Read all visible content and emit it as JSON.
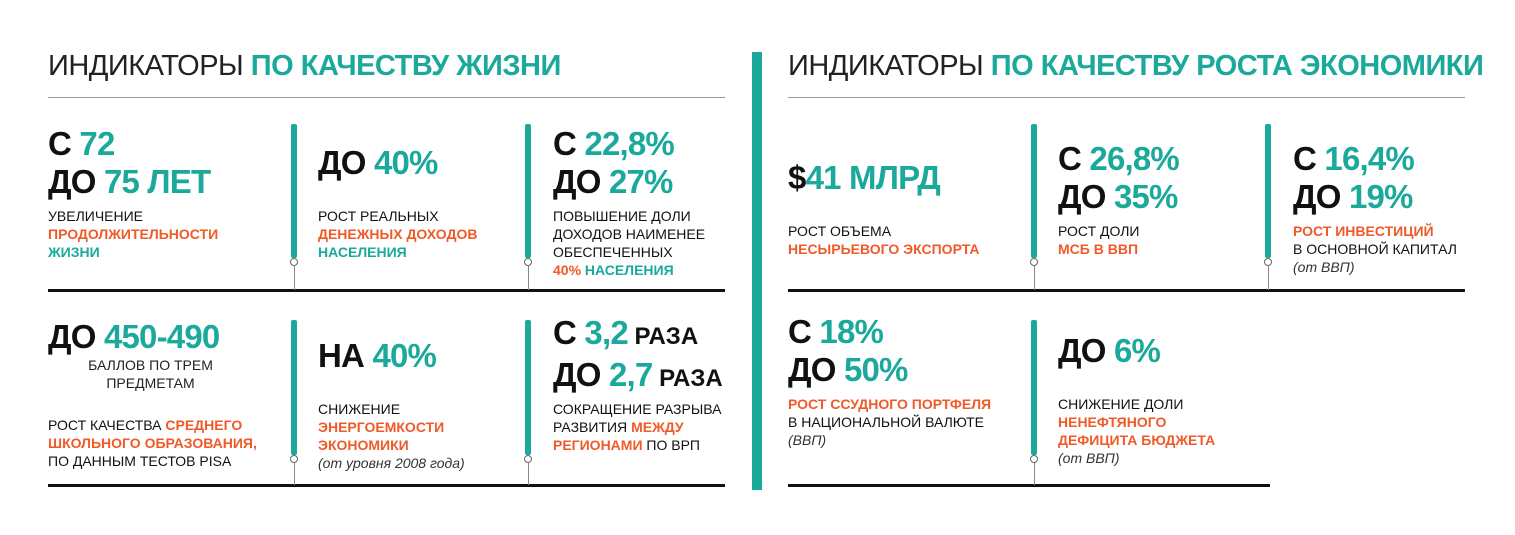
{
  "colors": {
    "teal": "#1ba99b",
    "orange": "#f05a28",
    "black": "#111111"
  },
  "left": {
    "title_light": "ИНДИКАТОРЫ ",
    "title_bold": "ПО КАЧЕСТВУ ЖИЗНИ",
    "indicators": [
      {
        "headline": [
          [
            {
              "t": "С ",
              "c": "k"
            },
            {
              "t": "72",
              "c": "g"
            }
          ],
          [
            {
              "t": "ДО ",
              "c": "k"
            },
            {
              "t": "75 ЛЕТ",
              "c": "g"
            }
          ]
        ],
        "desc": [
          [
            {
              "t": "УВЕЛИЧЕНИЕ",
              "c": "k"
            }
          ],
          [
            {
              "t": "ПРОДОЛЖИТЕЛЬНОСТИ",
              "c": "o",
              "b": 1
            }
          ],
          [
            {
              "t": "ЖИЗНИ",
              "c": "g",
              "b": 1
            }
          ]
        ]
      },
      {
        "headline": [
          [
            {
              "t": "ДО ",
              "c": "k"
            },
            {
              "t": "40%",
              "c": "g"
            }
          ]
        ],
        "desc": [
          [
            {
              "t": "РОСТ РЕАЛЬНЫХ",
              "c": "k"
            }
          ],
          [
            {
              "t": "ДЕНЕЖНЫХ ДОХОДОВ",
              "c": "o",
              "b": 1
            }
          ],
          [
            {
              "t": "НАСЕЛЕНИЯ",
              "c": "g",
              "b": 1
            }
          ]
        ]
      },
      {
        "headline": [
          [
            {
              "t": "С ",
              "c": "k"
            },
            {
              "t": "22,8%",
              "c": "g"
            }
          ],
          [
            {
              "t": "ДО ",
              "c": "k"
            },
            {
              "t": "27%",
              "c": "g"
            }
          ]
        ],
        "desc": [
          [
            {
              "t": "ПОВЫШЕНИЕ ДОЛИ",
              "c": "k"
            }
          ],
          [
            {
              "t": "ДОХОДОВ НАИМЕНЕЕ",
              "c": "k"
            }
          ],
          [
            {
              "t": "ОБЕСПЕЧЕННЫХ",
              "c": "k"
            }
          ],
          [
            {
              "t": "40% ",
              "c": "o",
              "b": 1
            },
            {
              "t": "НАСЕЛЕНИЯ",
              "c": "g",
              "b": 1
            }
          ]
        ]
      },
      {
        "headline": [
          [
            {
              "t": "ДО ",
              "c": "k"
            },
            {
              "t": "450-490",
              "c": "g"
            }
          ]
        ],
        "sub": [
          "БАЛЛОВ ПО ТРЕМ",
          "ПРЕДМЕТАМ"
        ],
        "desc": [
          [
            {
              "t": "РОСТ КАЧЕСТВА ",
              "c": "k"
            },
            {
              "t": "СРЕДНЕГО",
              "c": "o",
              "b": 1
            }
          ],
          [
            {
              "t": "ШКОЛЬНОГО ОБРАЗОВАНИЯ,",
              "c": "o",
              "b": 1
            }
          ],
          [
            {
              "t": "ПО ДАННЫМ ТЕСТОВ PISA",
              "c": "k"
            }
          ]
        ]
      },
      {
        "headline": [
          [
            {
              "t": "НА ",
              "c": "k"
            },
            {
              "t": "40%",
              "c": "g"
            }
          ]
        ],
        "desc": [
          [
            {
              "t": "СНИЖЕНИЕ",
              "c": "k"
            }
          ],
          [
            {
              "t": "ЭНЕРГОЕМКОСТИ",
              "c": "o",
              "b": 1
            }
          ],
          [
            {
              "t": "ЭКОНОМИКИ",
              "c": "o",
              "b": 1
            }
          ]
        ],
        "note": "(от уровня 2008 года)"
      },
      {
        "headline": [
          [
            {
              "t": "С ",
              "c": "k"
            },
            {
              "t": "3,2",
              "c": "g"
            },
            {
              "t": " РАЗА",
              "c": "k",
              "s": 1
            }
          ],
          [
            {
              "t": "ДО ",
              "c": "k"
            },
            {
              "t": "2,7",
              "c": "g"
            },
            {
              "t": " РАЗА",
              "c": "k",
              "s": 1
            }
          ]
        ],
        "desc": [
          [
            {
              "t": "СОКРАЩЕНИЕ РАЗРЫВА",
              "c": "k"
            }
          ],
          [
            {
              "t": "РАЗВИТИЯ ",
              "c": "k"
            },
            {
              "t": "МЕЖДУ",
              "c": "o",
              "b": 1
            }
          ],
          [
            {
              "t": "РЕГИОНАМИ",
              "c": "o",
              "b": 1
            },
            {
              "t": " ПО ВРП",
              "c": "k"
            }
          ]
        ]
      }
    ]
  },
  "right": {
    "title_light": "ИНДИКАТОРЫ ",
    "title_bold": "ПО КАЧЕСТВУ РОСТА ЭКОНОМИКИ",
    "indicators": [
      {
        "headline": [
          [
            {
              "t": "$",
              "c": "k"
            },
            {
              "t": "41 МЛРД",
              "c": "g"
            }
          ]
        ],
        "desc": [
          [
            {
              "t": "РОСТ ОБЪЕМА",
              "c": "k"
            }
          ],
          [
            {
              "t": "НЕСЫРЬЕВОГО ЭКСПОРТА",
              "c": "o",
              "b": 1
            }
          ]
        ]
      },
      {
        "headline": [
          [
            {
              "t": "С ",
              "c": "k"
            },
            {
              "t": "26,8%",
              "c": "g"
            }
          ],
          [
            {
              "t": "ДО ",
              "c": "k"
            },
            {
              "t": "35%",
              "c": "g"
            }
          ]
        ],
        "desc": [
          [
            {
              "t": "РОСТ ДОЛИ",
              "c": "k"
            }
          ],
          [
            {
              "t": "МСБ В ВВП",
              "c": "o",
              "b": 1
            }
          ]
        ]
      },
      {
        "headline": [
          [
            {
              "t": "С ",
              "c": "k"
            },
            {
              "t": "16,4%",
              "c": "g"
            }
          ],
          [
            {
              "t": "ДО ",
              "c": "k"
            },
            {
              "t": "19%",
              "c": "g"
            }
          ]
        ],
        "desc": [
          [
            {
              "t": "РОСТ ИНВЕСТИЦИЙ",
              "c": "o",
              "b": 1
            }
          ],
          [
            {
              "t": "В ОСНОВНОЙ КАПИТАЛ",
              "c": "k"
            }
          ]
        ],
        "note": "(от ВВП)"
      },
      {
        "headline": [
          [
            {
              "t": "С ",
              "c": "k"
            },
            {
              "t": "18%",
              "c": "g"
            }
          ],
          [
            {
              "t": "ДО ",
              "c": "k"
            },
            {
              "t": "50%",
              "c": "g"
            }
          ]
        ],
        "desc": [
          [
            {
              "t": "РОСТ ССУДНОГО ПОРТФЕЛЯ",
              "c": "o",
              "b": 1
            }
          ],
          [
            {
              "t": "В НАЦИОНАЛЬНОЙ ВАЛЮТЕ",
              "c": "k"
            }
          ]
        ],
        "note": "(ВВП)"
      },
      {
        "headline": [
          [
            {
              "t": "ДО ",
              "c": "k"
            },
            {
              "t": "6%",
              "c": "g"
            }
          ]
        ],
        "desc": [
          [
            {
              "t": "СНИЖЕНИЕ ДОЛИ",
              "c": "k"
            }
          ],
          [
            {
              "t": "НЕНЕФТЯНОГО",
              "c": "o",
              "b": 1
            }
          ],
          [
            {
              "t": "ДЕФИЦИТА БЮДЖЕТА",
              "c": "o",
              "b": 1
            }
          ]
        ],
        "note": "(от ВВП)"
      }
    ]
  }
}
